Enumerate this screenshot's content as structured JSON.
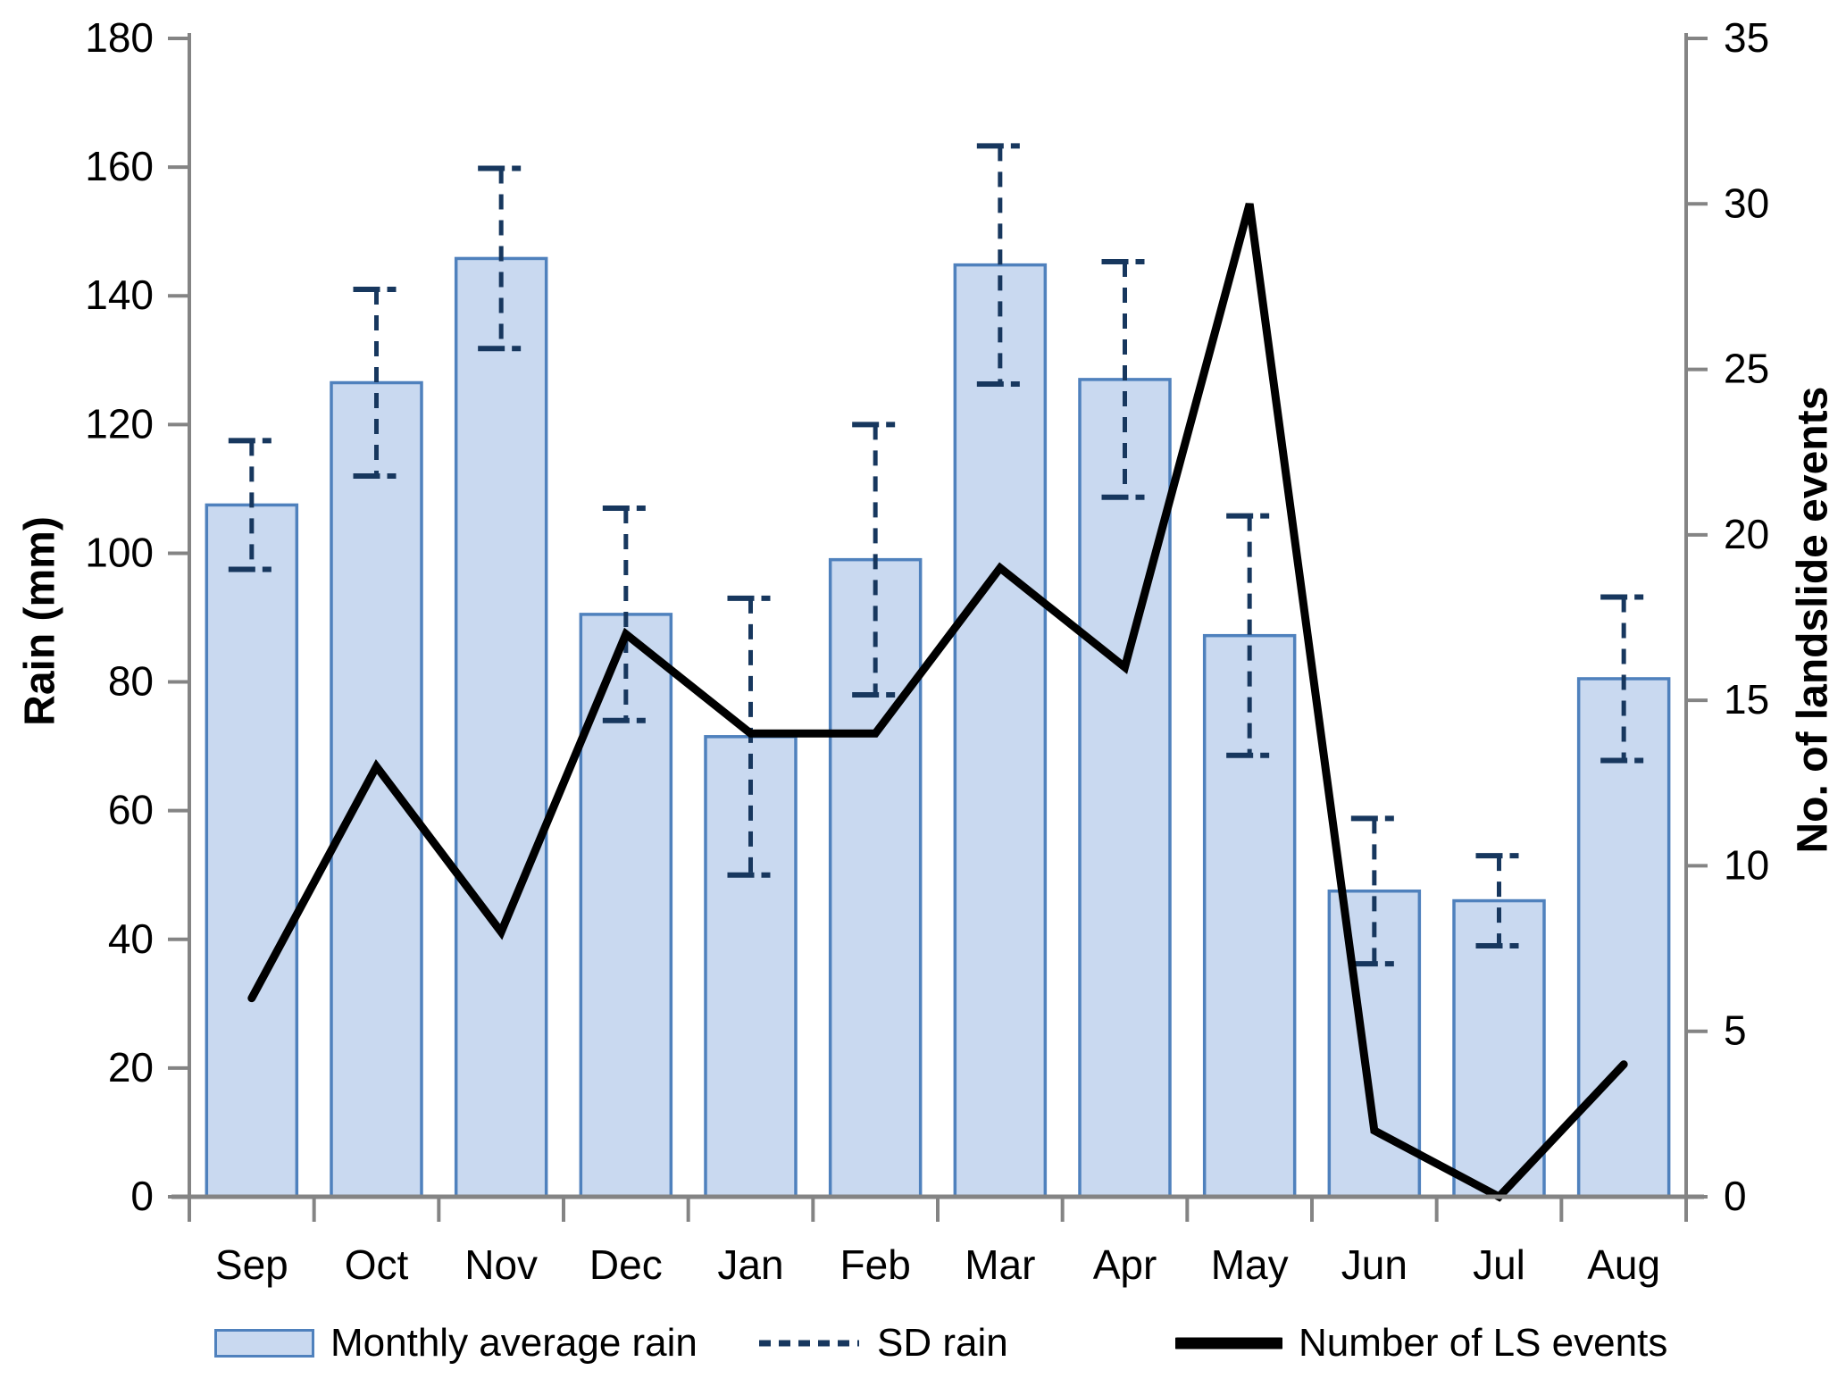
{
  "chart_data": {
    "type": "bar+line combo",
    "categories": [
      "Sep",
      "Oct",
      "Nov",
      "Dec",
      "Jan",
      "Feb",
      "Mar",
      "Apr",
      "May",
      "Jun",
      "Jul",
      "Aug"
    ],
    "series": [
      {
        "name": "Monthly average rain",
        "type": "bar",
        "axis": "left",
        "values": [
          107.5,
          126.5,
          145.8,
          90.5,
          71.5,
          99,
          144.8,
          127,
          87.2,
          47.5,
          46,
          80.5
        ]
      },
      {
        "name": "SD rain",
        "type": "errorbar",
        "axis": "left",
        "sd": [
          10,
          14.5,
          14,
          16.5,
          21.5,
          21,
          18.5,
          18.3,
          18.6,
          11.3,
          7,
          12.7
        ]
      },
      {
        "name": "Number of LS events",
        "type": "line",
        "axis": "right",
        "values": [
          6,
          13,
          8,
          17,
          14,
          14,
          19,
          16,
          30,
          2,
          0,
          4
        ]
      }
    ],
    "axes": {
      "left": {
        "title": "Rain (mm)",
        "min": 0,
        "max": 180,
        "step": 20,
        "tick_labels": [
          "0",
          "20",
          "40",
          "60",
          "80",
          "100",
          "120",
          "140",
          "160",
          "180"
        ]
      },
      "right": {
        "title": "No. of landslide events",
        "min": 0,
        "max": 35,
        "step": 5,
        "tick_labels": [
          "0",
          "5",
          "10",
          "15",
          "20",
          "25",
          "30",
          "35"
        ]
      }
    },
    "legend": {
      "position": "bottom",
      "items": [
        "Monthly average rain",
        "SD rain",
        "Number of LS events"
      ]
    },
    "grid": "off",
    "title": ""
  },
  "colors": {
    "bar_fill": "#c9d9f0",
    "bar_border": "#4f81bd",
    "error_bar": "#17375e",
    "line_series": "#000000",
    "axis": "#848484",
    "text": "#000000"
  }
}
